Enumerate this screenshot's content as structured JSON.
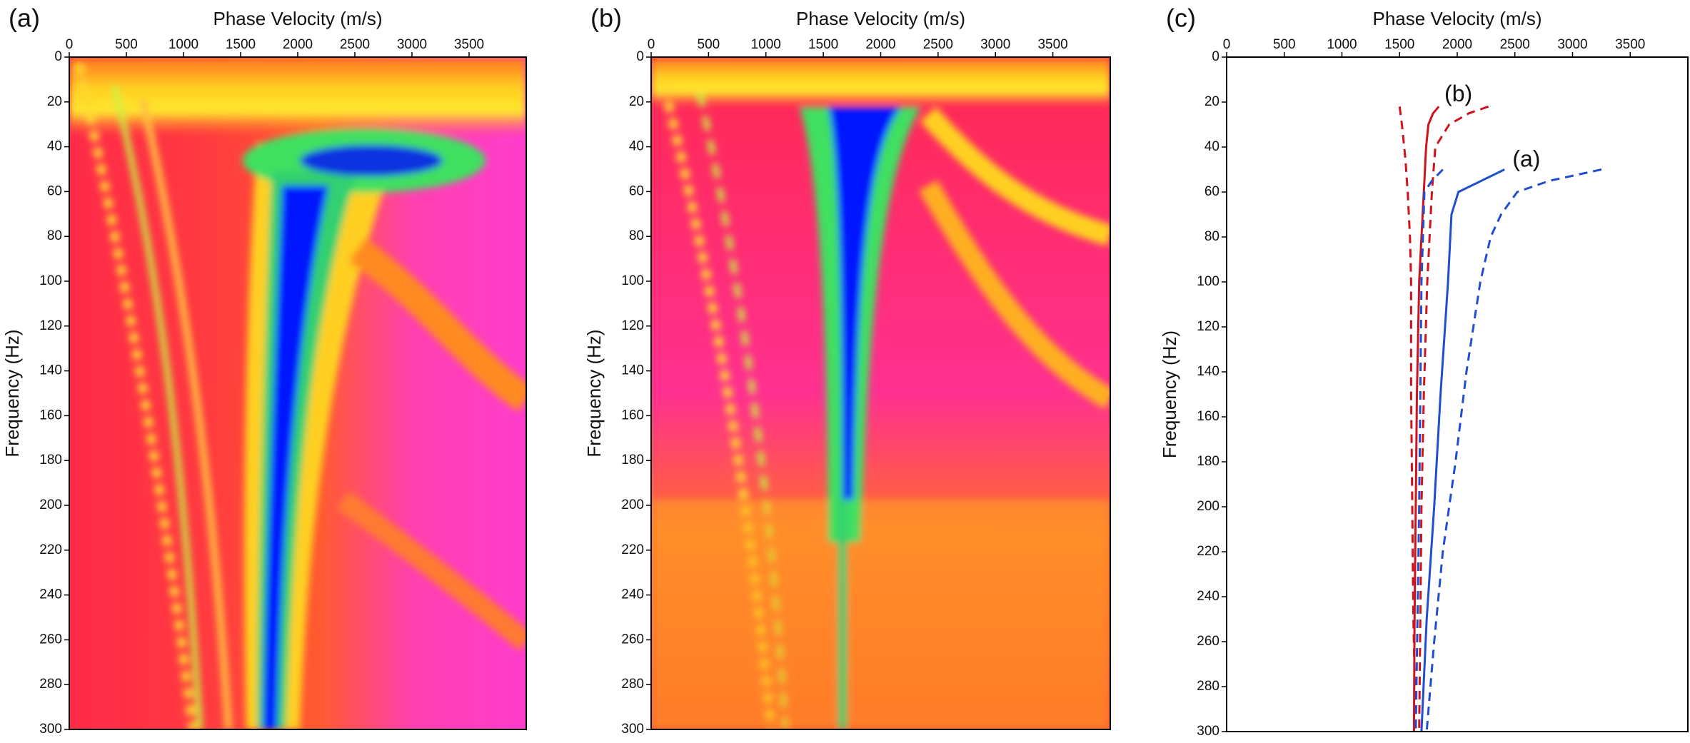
{
  "chart_data": [
    {
      "type": "dispersion-image",
      "panel_label": "(a)",
      "xlabel": "Phase Velocity (m/s)",
      "ylabel": "Frequency (Hz)",
      "xlim": [
        0,
        4000
      ],
      "ylim": [
        0,
        300
      ],
      "y_inverted": true,
      "xticks": [
        0,
        500,
        1000,
        1500,
        2000,
        2500,
        3000,
        3500
      ],
      "yticks": [
        0,
        20,
        40,
        60,
        80,
        100,
        120,
        140,
        160,
        180,
        200,
        220,
        240,
        260,
        280,
        300
      ]
    },
    {
      "type": "dispersion-image",
      "panel_label": "(b)",
      "xlabel": "Phase Velocity (m/s)",
      "ylabel": "Frequency (Hz)",
      "xlim": [
        0,
        4000
      ],
      "ylim": [
        0,
        300
      ],
      "y_inverted": true,
      "xticks": [
        0,
        500,
        1000,
        1500,
        2000,
        2500,
        3000,
        3500
      ],
      "yticks": [
        0,
        20,
        40,
        60,
        80,
        100,
        120,
        140,
        160,
        180,
        200,
        220,
        240,
        260,
        280,
        300
      ]
    },
    {
      "type": "line",
      "panel_label": "(c)",
      "xlabel": "Phase Velocity (m/s)",
      "ylabel": "Frequency (Hz)",
      "xlim": [
        0,
        4000
      ],
      "ylim": [
        0,
        300
      ],
      "y_inverted": true,
      "xticks": [
        0,
        500,
        1000,
        1500,
        2000,
        2500,
        3000,
        3500
      ],
      "yticks": [
        0,
        20,
        40,
        60,
        80,
        100,
        120,
        140,
        160,
        180,
        200,
        220,
        240,
        260,
        280,
        300
      ],
      "series": [
        {
          "color": "#d0121b",
          "style": "solid",
          "x": [
            1840,
            1790,
            1750,
            1730,
            1710,
            1690,
            1670,
            1650,
            1640,
            1630,
            1625
          ],
          "y": [
            22,
            25,
            30,
            40,
            60,
            80,
            100,
            150,
            200,
            250,
            300
          ]
        },
        {
          "color": "#d0121b",
          "style": "dashed",
          "x": [
            1500,
            1520,
            1550,
            1570,
            1590,
            1600,
            1600,
            1610,
            1620,
            1640
          ],
          "y": [
            22,
            30,
            45,
            60,
            80,
            100,
            150,
            200,
            250,
            300
          ]
        },
        {
          "color": "#d0121b",
          "style": "dashed",
          "x": [
            2270,
            2100,
            1930,
            1810,
            1780,
            1740,
            1710,
            1690,
            1680,
            1670
          ],
          "y": [
            22,
            25,
            30,
            40,
            60,
            100,
            150,
            200,
            250,
            300
          ]
        },
        {
          "color": "#1f4fd0",
          "style": "solid",
          "x": [
            2410,
            2010,
            1950,
            1920,
            1855,
            1800,
            1735,
            1690
          ],
          "y": [
            50,
            60,
            70,
            100,
            150,
            200,
            250,
            300
          ]
        },
        {
          "color": "#1f4fd0",
          "style": "dashed",
          "x": [
            3250,
            2800,
            2520,
            2380,
            2290,
            2200,
            2080,
            1985,
            1875,
            1800,
            1735
          ],
          "y": [
            50,
            55,
            60,
            70,
            80,
            100,
            140,
            180,
            220,
            260,
            300
          ]
        },
        {
          "color": "#1f4fd0",
          "style": "dashed",
          "x": [
            1875,
            1780,
            1715,
            1690,
            1670,
            1640
          ],
          "y": [
            50,
            55,
            60,
            100,
            200,
            300
          ]
        }
      ],
      "annotations": [
        {
          "text": "(b)",
          "x": 2010,
          "y": 17
        },
        {
          "text": "(a)",
          "x": 2600,
          "y": 46
        }
      ]
    }
  ]
}
